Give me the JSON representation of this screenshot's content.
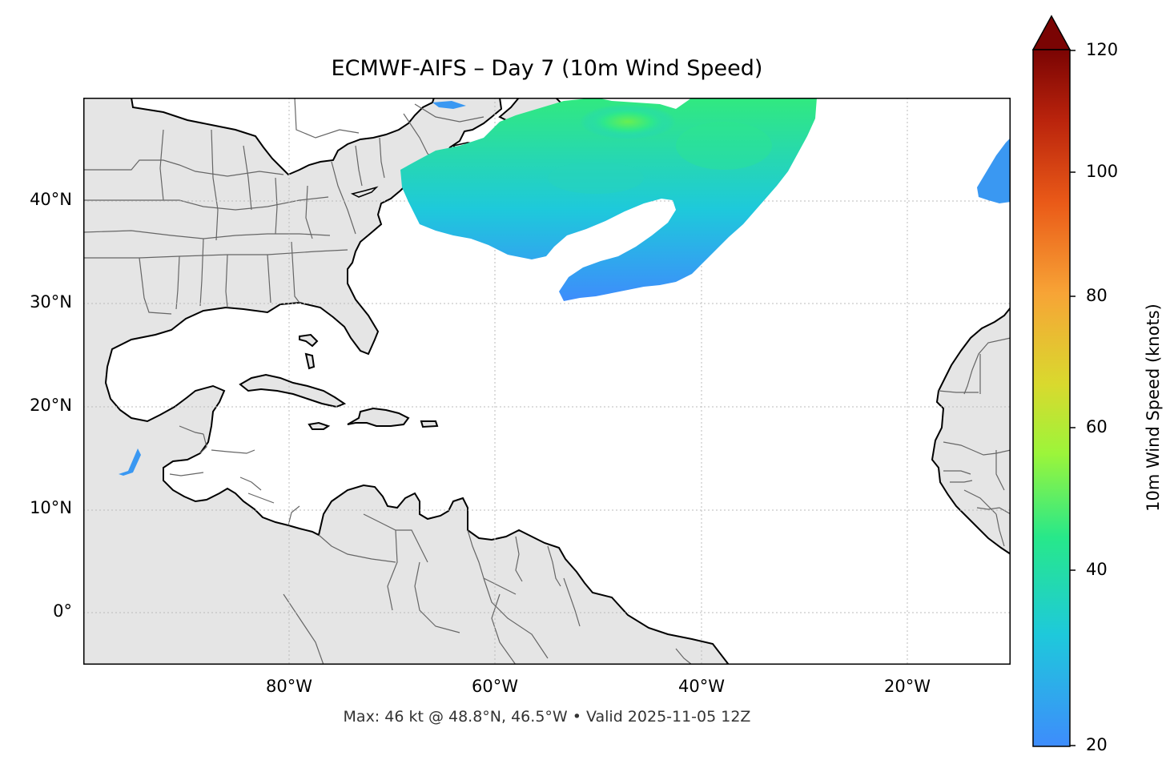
{
  "title": "ECMWF-AIFS – Day 7 (10m Wind Speed)",
  "footer": "Max: 46 kt @ 48.8°N, 46.5°W • Valid 2025-11-05 12Z",
  "map": {
    "lon_range": [
      -100,
      -10
    ],
    "lat_range": [
      -5,
      50
    ],
    "lat_ticks": [
      "40°N",
      "30°N",
      "20°N",
      "10°N",
      "0°"
    ],
    "lon_ticks": [
      "80°W",
      "60°W",
      "40°W",
      "20°W"
    ],
    "gridlines": true,
    "land_color": "#e5e5e5",
    "coast_color": "#000000",
    "border_color": "#666666"
  },
  "colorbar": {
    "label": "10m Wind Speed (knots)",
    "ticks": [
      "120",
      "100",
      "80",
      "60",
      "40",
      "20"
    ],
    "min": 20,
    "max": 120,
    "extend": "max",
    "colormap": [
      "#3e8cfc",
      "#1ec9db",
      "#27e88a",
      "#9cf53a",
      "#d9d92e",
      "#f7a436",
      "#ea5a18",
      "#b9230c",
      "#7a0403"
    ]
  },
  "wind_field": {
    "max_kt": 46,
    "max_location": "48.8°N, 46.5°W"
  }
}
